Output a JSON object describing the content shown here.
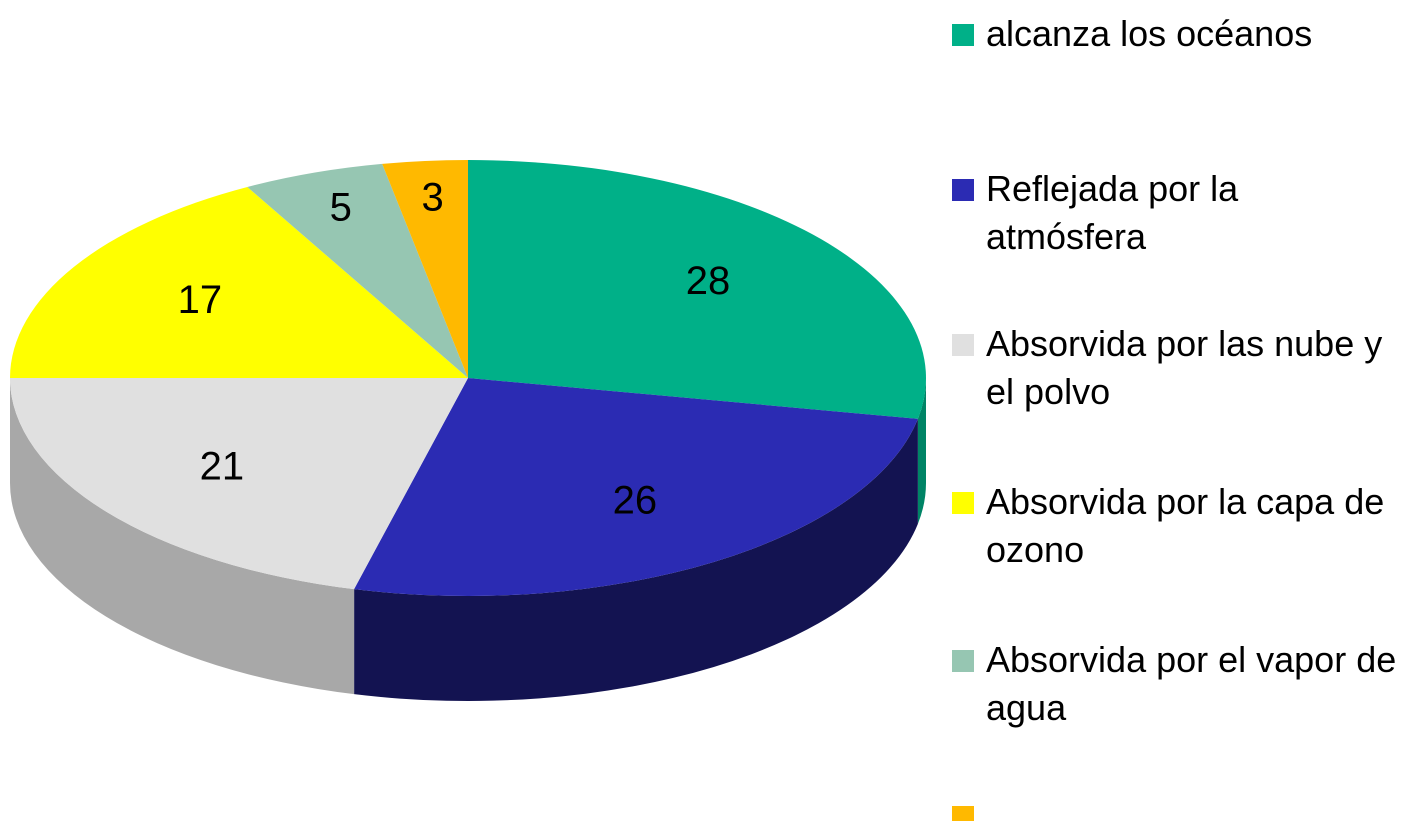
{
  "chart_data": {
    "type": "pie",
    "categories": [
      "alcanza los océanos",
      "Reflejada por la atmósfera",
      "Absorvida por las nube y el polvo",
      "Absorvida por la capa de ozono",
      "Absorvida por el vapor de agua",
      null
    ],
    "values": [
      28,
      26,
      21,
      17,
      5,
      3
    ],
    "colors": [
      "#00b088",
      "#2b2bb3",
      "#e0e0e0",
      "#ffff00",
      "#96c6b2",
      "#ffb900"
    ],
    "legend": "right"
  }
}
